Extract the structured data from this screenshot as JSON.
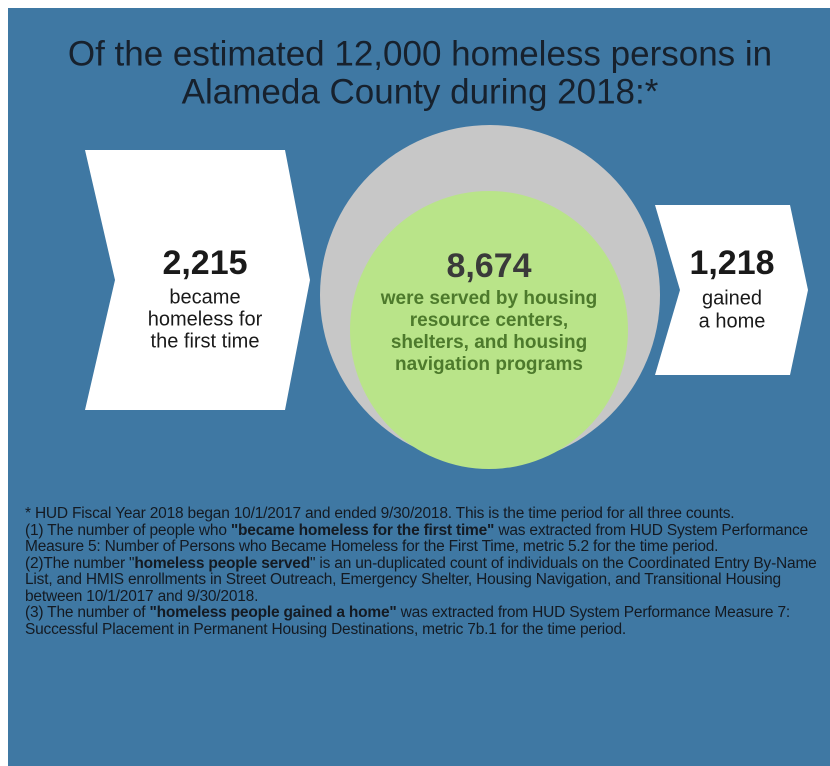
{
  "title": [
    "Of the estimated 12,000 homeless persons in",
    "Alameda County during 2018:*"
  ],
  "left": {
    "number": "2,215",
    "lines": [
      "became",
      "homeless for",
      "the first time"
    ]
  },
  "center": {
    "number": "8,674",
    "lines": [
      "were served by housing",
      "resource centers,",
      "shelters, and housing",
      "navigation programs"
    ]
  },
  "right": {
    "number": "1,218",
    "lines": [
      "gained",
      "a home"
    ]
  },
  "notes": [
    {
      "before": "* HUD Fiscal Year 2018 began 10/1/2017 and ended 9/30/2018. This is the time period for all three counts."
    },
    {
      "before": "(1) The number of people who ",
      "bold": "\"became homeless for the first time\"",
      "after": " was extracted from HUD System Performance Measure 5: Number of Persons who Became Homeless for the First Time, metric 5.2 for the time period."
    },
    {
      "before": "(2)The number \"",
      "bold": "homeless people served",
      "after": "\" is an un-duplicated count of individuals on the Coordinated Entry By-Name List, and  HMIS enrollments in Street Outreach, Emergency Shelter, Housing Navigation, and Transitional Housing between 10/1/2017 and 9/30/2018."
    },
    {
      "before": "(3) The number of ",
      "bold": "\"homeless people gained a home\"",
      "after": " was extracted from HUD System Performance Measure 7: Successful Placement in Permanent Housing Destinations, metric 7b.1 for the time period."
    }
  ]
}
